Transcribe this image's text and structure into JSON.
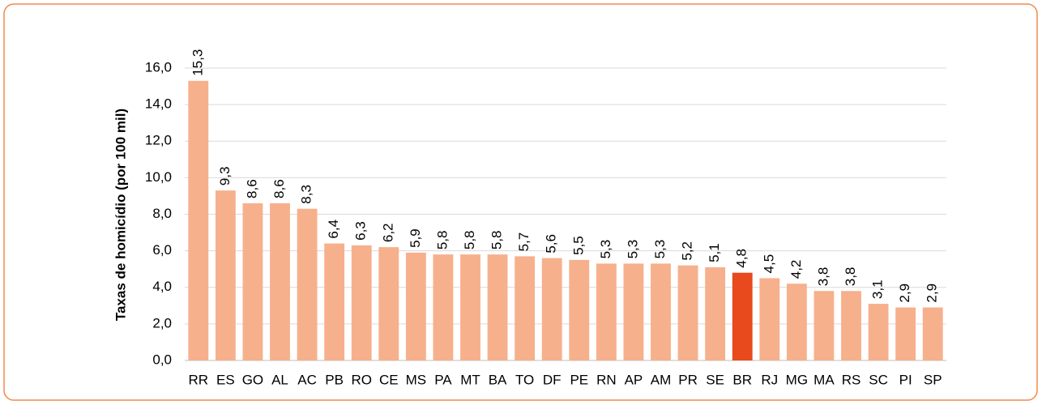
{
  "chart_data": {
    "type": "bar",
    "y_label": "Taxas de homicídio (por 100 mil)",
    "categories": [
      "RR",
      "ES",
      "GO",
      "AL",
      "AC",
      "PB",
      "RO",
      "CE",
      "MS",
      "PA",
      "MT",
      "BA",
      "TO",
      "DF",
      "PE",
      "RN",
      "AP",
      "AM",
      "PR",
      "SE",
      "BR",
      "RJ",
      "MG",
      "MA",
      "RS",
      "SC",
      "PI",
      "SP"
    ],
    "values": [
      15.3,
      9.3,
      8.6,
      8.6,
      8.3,
      6.4,
      6.3,
      6.2,
      5.9,
      5.8,
      5.8,
      5.8,
      5.7,
      5.6,
      5.5,
      5.3,
      5.3,
      5.3,
      5.2,
      5.1,
      4.8,
      4.5,
      4.2,
      3.8,
      3.8,
      3.1,
      2.9,
      2.9
    ],
    "value_labels": [
      "15,3",
      "9,3",
      "8,6",
      "8,6",
      "8,3",
      "6,4",
      "6,3",
      "6,2",
      "5,9",
      "5,8",
      "5,8",
      "5,8",
      "5,7",
      "5,6",
      "5,5",
      "5,3",
      "5,3",
      "5,3",
      "5,2",
      "5,1",
      "4,8",
      "4,5",
      "4,2",
      "3,8",
      "3,8",
      "3,1",
      "2,9",
      "2,9"
    ],
    "colors": [
      "#f7b08c",
      "#f7b08c",
      "#f7b08c",
      "#f7b08c",
      "#f7b08c",
      "#f7b08c",
      "#f7b08c",
      "#f7b08c",
      "#f7b08c",
      "#f7b08c",
      "#f7b08c",
      "#f7b08c",
      "#f7b08c",
      "#f7b08c",
      "#f7b08c",
      "#f7b08c",
      "#f7b08c",
      "#f7b08c",
      "#f7b08c",
      "#f7b08c",
      "#e8491d",
      "#f7b08c",
      "#f7b08c",
      "#f7b08c",
      "#f7b08c",
      "#f7b08c",
      "#f7b08c",
      "#f7b08c"
    ],
    "ylim": [
      0,
      16
    ],
    "yticks": [
      {
        "value": 0,
        "label": "0,0"
      },
      {
        "value": 2,
        "label": "2,0"
      },
      {
        "value": 4,
        "label": "4,0"
      },
      {
        "value": 6,
        "label": "6,0"
      },
      {
        "value": 8,
        "label": "8,0"
      },
      {
        "value": 10,
        "label": "10,0"
      },
      {
        "value": 12,
        "label": "12,0"
      },
      {
        "value": 14,
        "label": "14,0"
      },
      {
        "value": 16,
        "label": "16,0"
      }
    ],
    "grid": true
  }
}
